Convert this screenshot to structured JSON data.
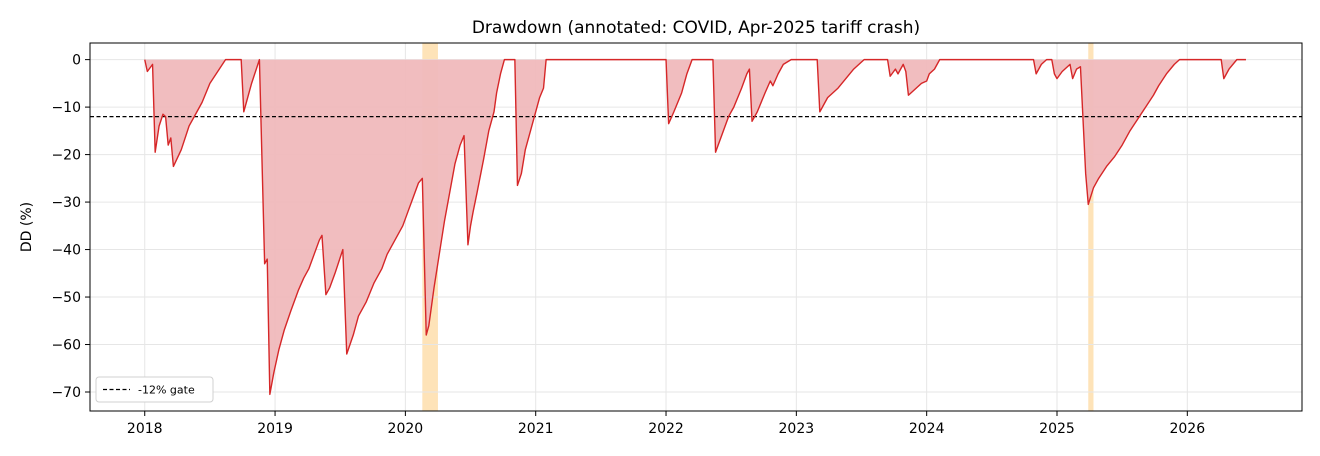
{
  "chart_data": {
    "type": "area",
    "title": "Drawdown (annotated: COVID, Apr-2025 tariff crash)",
    "xlabel": "",
    "ylabel": "DD (%)",
    "xlim": [
      2017.58,
      2026.88
    ],
    "ylim": [
      -74,
      3.5
    ],
    "x_ticks": [
      2018,
      2019,
      2020,
      2021,
      2022,
      2023,
      2024,
      2025,
      2026
    ],
    "y_ticks": [
      0,
      -10,
      -20,
      -30,
      -40,
      -50,
      -60,
      -70
    ],
    "grid": true,
    "legend_position": "lower-left",
    "colors": {
      "line": "#d62728",
      "fill": "#f0b9bc",
      "span": "#fdd9a0",
      "gate": "#000000"
    },
    "gate": {
      "value": -12,
      "label": "-12% gate"
    },
    "shaded_spans": [
      {
        "x0": 2020.13,
        "x1": 2020.25
      },
      {
        "x0": 2025.24,
        "x1": 2025.28
      }
    ],
    "series": [
      {
        "values": [
          [
            2018.0,
            0
          ],
          [
            2018.02,
            -2.5
          ],
          [
            2018.06,
            -1
          ],
          [
            2018.08,
            -19.5
          ],
          [
            2018.11,
            -14
          ],
          [
            2018.14,
            -11.5
          ],
          [
            2018.16,
            -12
          ],
          [
            2018.18,
            -18
          ],
          [
            2018.2,
            -16.5
          ],
          [
            2018.22,
            -22.5
          ],
          [
            2018.28,
            -19
          ],
          [
            2018.34,
            -14
          ],
          [
            2018.4,
            -11
          ],
          [
            2018.44,
            -9
          ],
          [
            2018.5,
            -5
          ],
          [
            2018.56,
            -2.5
          ],
          [
            2018.62,
            0
          ],
          [
            2018.74,
            0
          ],
          [
            2018.76,
            -11
          ],
          [
            2018.82,
            -5
          ],
          [
            2018.88,
            0
          ],
          [
            2018.92,
            -43
          ],
          [
            2018.94,
            -42
          ],
          [
            2018.96,
            -70.5
          ],
          [
            2018.99,
            -66
          ],
          [
            2019.03,
            -61
          ],
          [
            2019.07,
            -57
          ],
          [
            2019.12,
            -53
          ],
          [
            2019.18,
            -48.5
          ],
          [
            2019.22,
            -46
          ],
          [
            2019.26,
            -44
          ],
          [
            2019.3,
            -41
          ],
          [
            2019.34,
            -38
          ],
          [
            2019.36,
            -37
          ],
          [
            2019.39,
            -49.5
          ],
          [
            2019.42,
            -48
          ],
          [
            2019.46,
            -45
          ],
          [
            2019.52,
            -40
          ],
          [
            2019.55,
            -62
          ],
          [
            2019.6,
            -58
          ],
          [
            2019.64,
            -54
          ],
          [
            2019.7,
            -51
          ],
          [
            2019.76,
            -47
          ],
          [
            2019.82,
            -44
          ],
          [
            2019.86,
            -41
          ],
          [
            2019.92,
            -38
          ],
          [
            2019.98,
            -35
          ],
          [
            2020.02,
            -32
          ],
          [
            2020.06,
            -29
          ],
          [
            2020.1,
            -26
          ],
          [
            2020.13,
            -25
          ],
          [
            2020.16,
            -58
          ],
          [
            2020.18,
            -56
          ],
          [
            2020.22,
            -48
          ],
          [
            2020.26,
            -41
          ],
          [
            2020.3,
            -34
          ],
          [
            2020.34,
            -28
          ],
          [
            2020.38,
            -22
          ],
          [
            2020.42,
            -18
          ],
          [
            2020.45,
            -16
          ],
          [
            2020.48,
            -39
          ],
          [
            2020.5,
            -35
          ],
          [
            2020.52,
            -32
          ],
          [
            2020.55,
            -28
          ],
          [
            2020.6,
            -21
          ],
          [
            2020.64,
            -15
          ],
          [
            2020.68,
            -11
          ],
          [
            2020.7,
            -7
          ],
          [
            2020.73,
            -3
          ],
          [
            2020.76,
            0
          ],
          [
            2020.84,
            0
          ],
          [
            2020.86,
            -26.5
          ],
          [
            2020.89,
            -24
          ],
          [
            2020.92,
            -19
          ],
          [
            2020.97,
            -14
          ],
          [
            2021.03,
            -8
          ],
          [
            2021.06,
            -6
          ],
          [
            2021.08,
            0
          ],
          [
            2022.0,
            0
          ],
          [
            2022.02,
            -13.5
          ],
          [
            2022.06,
            -11
          ],
          [
            2022.12,
            -7
          ],
          [
            2022.16,
            -3
          ],
          [
            2022.2,
            0
          ],
          [
            2022.36,
            0
          ],
          [
            2022.38,
            -19.5
          ],
          [
            2022.44,
            -15
          ],
          [
            2022.48,
            -12
          ],
          [
            2022.52,
            -10
          ],
          [
            2022.58,
            -6
          ],
          [
            2022.62,
            -3
          ],
          [
            2022.64,
            -2
          ],
          [
            2022.66,
            -13
          ],
          [
            2022.7,
            -11
          ],
          [
            2022.76,
            -7
          ],
          [
            2022.8,
            -4.5
          ],
          [
            2022.82,
            -5.5
          ],
          [
            2022.86,
            -3
          ],
          [
            2022.9,
            -1
          ],
          [
            2022.96,
            0
          ],
          [
            2023.16,
            0
          ],
          [
            2023.18,
            -11
          ],
          [
            2023.24,
            -8
          ],
          [
            2023.32,
            -6
          ],
          [
            2023.38,
            -4
          ],
          [
            2023.44,
            -2
          ],
          [
            2023.48,
            -1
          ],
          [
            2023.52,
            0
          ],
          [
            2023.7,
            0
          ],
          [
            2023.72,
            -3.5
          ],
          [
            2023.76,
            -2
          ],
          [
            2023.78,
            -3
          ],
          [
            2023.82,
            -1
          ],
          [
            2023.84,
            -2.5
          ],
          [
            2023.86,
            -7.5
          ],
          [
            2023.9,
            -6.5
          ],
          [
            2023.96,
            -5
          ],
          [
            2024.0,
            -4.5
          ],
          [
            2024.02,
            -3
          ],
          [
            2024.06,
            -2
          ],
          [
            2024.1,
            0
          ],
          [
            2024.82,
            0
          ],
          [
            2024.84,
            -3
          ],
          [
            2024.88,
            -1
          ],
          [
            2024.92,
            0
          ],
          [
            2024.96,
            0
          ],
          [
            2024.98,
            -3
          ],
          [
            2025.0,
            -4
          ],
          [
            2025.04,
            -2.5
          ],
          [
            2025.1,
            -1
          ],
          [
            2025.12,
            -4
          ],
          [
            2025.15,
            -2
          ],
          [
            2025.18,
            -1.5
          ],
          [
            2025.22,
            -24
          ],
          [
            2025.24,
            -30.5
          ],
          [
            2025.28,
            -27
          ],
          [
            2025.32,
            -25
          ],
          [
            2025.38,
            -22.5
          ],
          [
            2025.44,
            -20.5
          ],
          [
            2025.5,
            -18
          ],
          [
            2025.56,
            -15
          ],
          [
            2025.62,
            -12.5
          ],
          [
            2025.68,
            -10
          ],
          [
            2025.74,
            -7.5
          ],
          [
            2025.78,
            -5.5
          ],
          [
            2025.84,
            -3
          ],
          [
            2025.9,
            -1
          ],
          [
            2025.94,
            0
          ],
          [
            2026.26,
            0
          ],
          [
            2026.28,
            -4
          ],
          [
            2026.32,
            -2
          ],
          [
            2026.38,
            0
          ],
          [
            2026.45,
            0
          ]
        ]
      }
    ]
  }
}
